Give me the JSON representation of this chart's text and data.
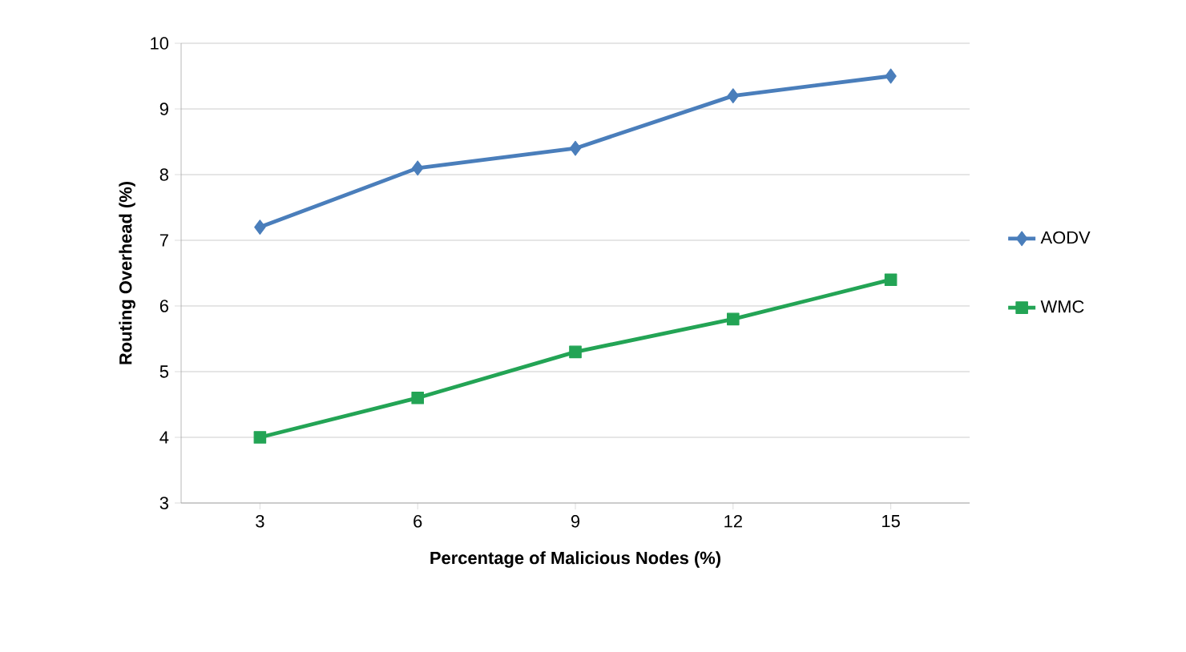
{
  "chart_data": {
    "type": "line",
    "xlabel": "Percentage of Malicious Nodes (%)",
    "ylabel": "Routing Overhead (%)",
    "categories": [
      "3",
      "6",
      "9",
      "12",
      "15"
    ],
    "series": [
      {
        "name": "AODV",
        "color": "#4a7ebb",
        "marker": "diamond",
        "values": [
          7.2,
          8.1,
          8.4,
          9.2,
          9.5
        ]
      },
      {
        "name": "WMC",
        "color": "#23a455",
        "marker": "square",
        "values": [
          4.0,
          4.6,
          5.3,
          5.8,
          6.4
        ]
      }
    ],
    "ylim": [
      3,
      10
    ],
    "yticks": [
      3,
      4,
      5,
      6,
      7,
      8,
      9,
      10
    ],
    "grid": "y",
    "legend": "right"
  }
}
